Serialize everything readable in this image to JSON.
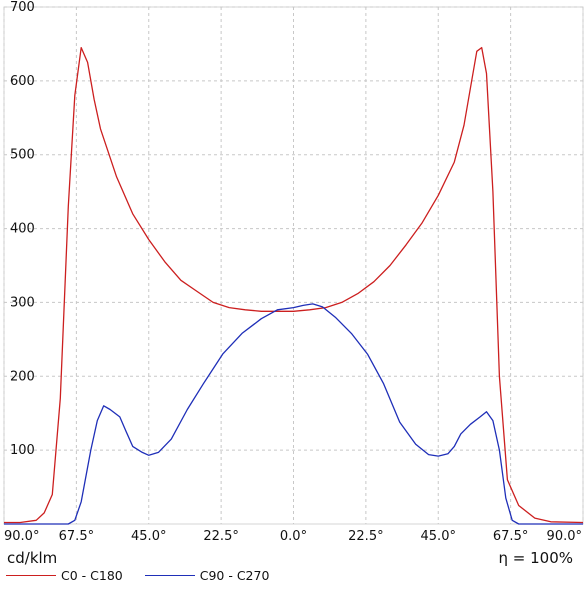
{
  "chart_data": {
    "type": "line",
    "xlabel": "",
    "ylabel": "",
    "unit_label": "cd/klm",
    "efficiency_label": "η = 100%",
    "ylim": [
      0,
      700
    ],
    "y_ticks": [
      "100",
      "200",
      "300",
      "400",
      "500",
      "600",
      "700"
    ],
    "y_tick_values": [
      100,
      200,
      300,
      400,
      500,
      600,
      700
    ],
    "xlim": [
      -90,
      90
    ],
    "x_tick_values": [
      -90,
      -67.5,
      -45,
      -22.5,
      0,
      22.5,
      45,
      67.5,
      90
    ],
    "x_ticks": [
      "90.0°",
      "67.5°",
      "45.0°",
      "22.5°",
      "0.0°",
      "22.5°",
      "45.0°",
      "67.5°",
      "90.0°"
    ],
    "grid": true,
    "legend_position": "bottom-left",
    "series": [
      {
        "name": "C0 - C180",
        "color": "#cc1f1f",
        "points": [
          [
            -90,
            2
          ],
          [
            -85,
            2
          ],
          [
            -80,
            5
          ],
          [
            -77.5,
            15
          ],
          [
            -75,
            40
          ],
          [
            -72.5,
            170
          ],
          [
            -70,
            430
          ],
          [
            -68,
            580
          ],
          [
            -66,
            645
          ],
          [
            -64,
            625
          ],
          [
            -62,
            575
          ],
          [
            -60,
            535
          ],
          [
            -55,
            470
          ],
          [
            -50,
            420
          ],
          [
            -45,
            385
          ],
          [
            -40,
            355
          ],
          [
            -35,
            330
          ],
          [
            -30,
            315
          ],
          [
            -25,
            300
          ],
          [
            -20,
            293
          ],
          [
            -15,
            290
          ],
          [
            -10,
            288
          ],
          [
            -5,
            288
          ],
          [
            0,
            288
          ],
          [
            5,
            290
          ],
          [
            10,
            293
          ],
          [
            15,
            300
          ],
          [
            20,
            312
          ],
          [
            25,
            328
          ],
          [
            30,
            350
          ],
          [
            35,
            378
          ],
          [
            40,
            408
          ],
          [
            45,
            445
          ],
          [
            50,
            490
          ],
          [
            53,
            540
          ],
          [
            55,
            590
          ],
          [
            57,
            640
          ],
          [
            58.5,
            645
          ],
          [
            60,
            610
          ],
          [
            62,
            450
          ],
          [
            64,
            200
          ],
          [
            66.5,
            60
          ],
          [
            70,
            25
          ],
          [
            75,
            8
          ],
          [
            80,
            3
          ],
          [
            90,
            2
          ]
        ]
      },
      {
        "name": "C90 - C270",
        "color": "#1f2fb8",
        "points": [
          [
            -90,
            0
          ],
          [
            -70,
            0
          ],
          [
            -68,
            5
          ],
          [
            -66,
            30
          ],
          [
            -63,
            100
          ],
          [
            -61,
            140
          ],
          [
            -59,
            160
          ],
          [
            -57,
            155
          ],
          [
            -54,
            145
          ],
          [
            -52,
            125
          ],
          [
            -50,
            105
          ],
          [
            -47,
            97
          ],
          [
            -45,
            93
          ],
          [
            -42,
            97
          ],
          [
            -38,
            115
          ],
          [
            -33,
            155
          ],
          [
            -28,
            190
          ],
          [
            -22,
            230
          ],
          [
            -16,
            258
          ],
          [
            -10,
            278
          ],
          [
            -5,
            290
          ],
          [
            0,
            293
          ],
          [
            3,
            296
          ],
          [
            6,
            298
          ],
          [
            9,
            294
          ],
          [
            13,
            280
          ],
          [
            18,
            258
          ],
          [
            23,
            230
          ],
          [
            28,
            190
          ],
          [
            33,
            138
          ],
          [
            38,
            108
          ],
          [
            42,
            94
          ],
          [
            45,
            92
          ],
          [
            48,
            95
          ],
          [
            50,
            105
          ],
          [
            52,
            122
          ],
          [
            55,
            135
          ],
          [
            58,
            145
          ],
          [
            60,
            152
          ],
          [
            62,
            140
          ],
          [
            64,
            100
          ],
          [
            66,
            35
          ],
          [
            68,
            5
          ],
          [
            70,
            0
          ],
          [
            90,
            0
          ]
        ]
      }
    ]
  }
}
